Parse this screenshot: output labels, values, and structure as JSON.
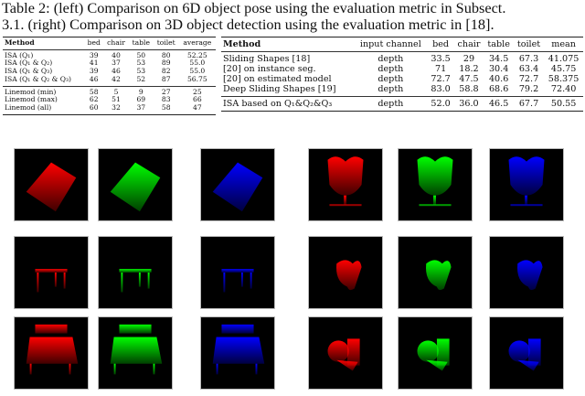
{
  "caption": {
    "line1": "Table 2: (left) Comparison on 6D object pose using the evaluation metric in Subsect.",
    "line2": "3.1. (right) Comparison on 3D object detection using the evaluation metric in [18]."
  },
  "left_table": {
    "headers": [
      "Method",
      "bed",
      "chair",
      "table",
      "toilet",
      "average"
    ],
    "group1": [
      [
        "ISA (Q₁)",
        "39",
        "40",
        "50",
        "80",
        "52.25"
      ],
      [
        "ISA (Q₁ & Q₂)",
        "41",
        "37",
        "53",
        "89",
        "55.0"
      ],
      [
        "ISA (Q₁ & Q₃)",
        "39",
        "46",
        "53",
        "82",
        "55.0"
      ],
      [
        "ISA (Q₁ & Q₂ & Q₃)",
        "46",
        "42",
        "52",
        "87",
        "56.75"
      ]
    ],
    "group2": [
      [
        "Linemod (min)",
        "58",
        "5",
        "9",
        "27",
        "25"
      ],
      [
        "Linemod (max)",
        "62",
        "51",
        "69",
        "83",
        "66"
      ],
      [
        "Linemod (all)",
        "60",
        "32",
        "37",
        "58",
        "47"
      ]
    ]
  },
  "right_table": {
    "headers": [
      "Method",
      "input channel",
      "bed",
      "chair",
      "table",
      "toilet",
      "mean"
    ],
    "group1": [
      [
        "Sliding Shapes [18]",
        "depth",
        "33.5",
        "29",
        "34.5",
        "67.3",
        "41.075"
      ],
      [
        "[20] on instance seg.",
        "depth",
        "71",
        "18.2",
        "30.4",
        "63.4",
        "45.75"
      ],
      [
        "[20] on estimated model",
        "depth",
        "72.7",
        "47.5",
        "40.6",
        "72.7",
        "58.375"
      ],
      [
        "Deep Sliding Shapes [19]",
        "depth",
        "83.0",
        "58.8",
        "68.6",
        "79.2",
        "72.40"
      ]
    ],
    "group2": [
      [
        "ISA based on Q₁&Q₂&Q₃",
        "depth",
        "52.0",
        "36.0",
        "46.5",
        "67.7",
        "50.55"
      ]
    ]
  },
  "figure": {
    "channel_colors": [
      "#ff0000",
      "#00ff00",
      "#0000ff"
    ],
    "left_objects": [
      "bed",
      "table",
      "bed"
    ],
    "right_objects": [
      "chair",
      "toilet",
      "toilet"
    ]
  }
}
